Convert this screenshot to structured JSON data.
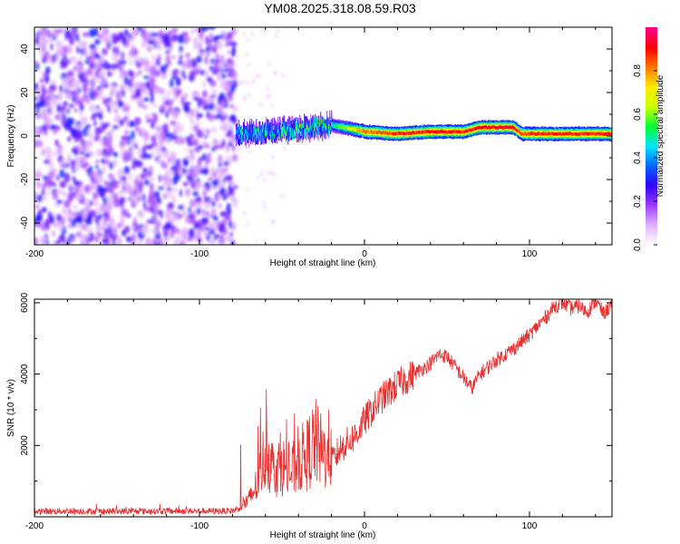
{
  "title": "YM08.2025.318.08.59.R03",
  "chart_data": [
    {
      "type": "heatmap",
      "title": "YM08.2025.318.08.59.R03",
      "xlabel": "Height of straight line (km)",
      "ylabel": "Frequency (Hz)",
      "xlim": [
        -200,
        150
      ],
      "ylim": [
        -50,
        50
      ],
      "xticks": [
        -200,
        -100,
        0,
        100
      ],
      "yticks": [
        -40,
        -20,
        0,
        20,
        40
      ],
      "colorbar": {
        "label": "Normalized spectral amplitude",
        "range": [
          0,
          1
        ],
        "ticks": [
          0.0,
          0.2,
          0.4,
          0.6,
          0.8
        ],
        "colors": [
          "#ffffff",
          "#e0b0ff",
          "#9a3cff",
          "#3300ff",
          "#0066ff",
          "#00e5ff",
          "#00ff33",
          "#c8ff00",
          "#ffee00",
          "#ff7a00",
          "#ff0000",
          "#ff0088"
        ]
      },
      "features": {
        "noise_region_x": [
          -200,
          -78
        ],
        "signal_band": {
          "x": [
            -78,
            -40,
            -20,
            0,
            20,
            40,
            60,
            70,
            90,
            95,
            100,
            150
          ],
          "center_freq": [
            1,
            3,
            5,
            2,
            1,
            2,
            2,
            4,
            4,
            1,
            1,
            1
          ],
          "peak_amplitude": [
            0.45,
            0.55,
            0.5,
            0.85,
            0.9,
            0.92,
            0.9,
            0.95,
            0.95,
            0.85,
            0.9,
            0.9
          ]
        }
      }
    },
    {
      "type": "line",
      "xlabel": "Height of straight line (km)",
      "ylabel": "SNR (10 * v/v)",
      "xlim": [
        -200,
        150
      ],
      "ylim": [
        0,
        6100
      ],
      "xticks": [
        -200,
        -100,
        0,
        100
      ],
      "yticks": [
        2000,
        4000,
        6000
      ],
      "series": [
        {
          "name": "SNR",
          "color": "#e83030",
          "x": [
            -200,
            -180,
            -160,
            -140,
            -120,
            -100,
            -90,
            -80,
            -70,
            -65,
            -60,
            -55,
            -50,
            -45,
            -40,
            -35,
            -30,
            -25,
            -20,
            -15,
            -10,
            -5,
            0,
            10,
            20,
            30,
            40,
            45,
            50,
            55,
            60,
            65,
            70,
            80,
            90,
            100,
            110,
            115,
            120,
            125,
            130,
            135,
            140,
            145,
            150
          ],
          "y": [
            150,
            160,
            150,
            155,
            160,
            160,
            160,
            170,
            350,
            700,
            1400,
            1000,
            1100,
            900,
            1200,
            1300,
            1600,
            1300,
            1500,
            1900,
            2100,
            2300,
            2700,
            3300,
            3700,
            4000,
            4300,
            4550,
            4500,
            4200,
            3900,
            3600,
            4000,
            4400,
            4700,
            5100,
            5600,
            5900,
            6000,
            5850,
            5900,
            5750,
            6050,
            5700,
            5950
          ]
        }
      ]
    }
  ]
}
